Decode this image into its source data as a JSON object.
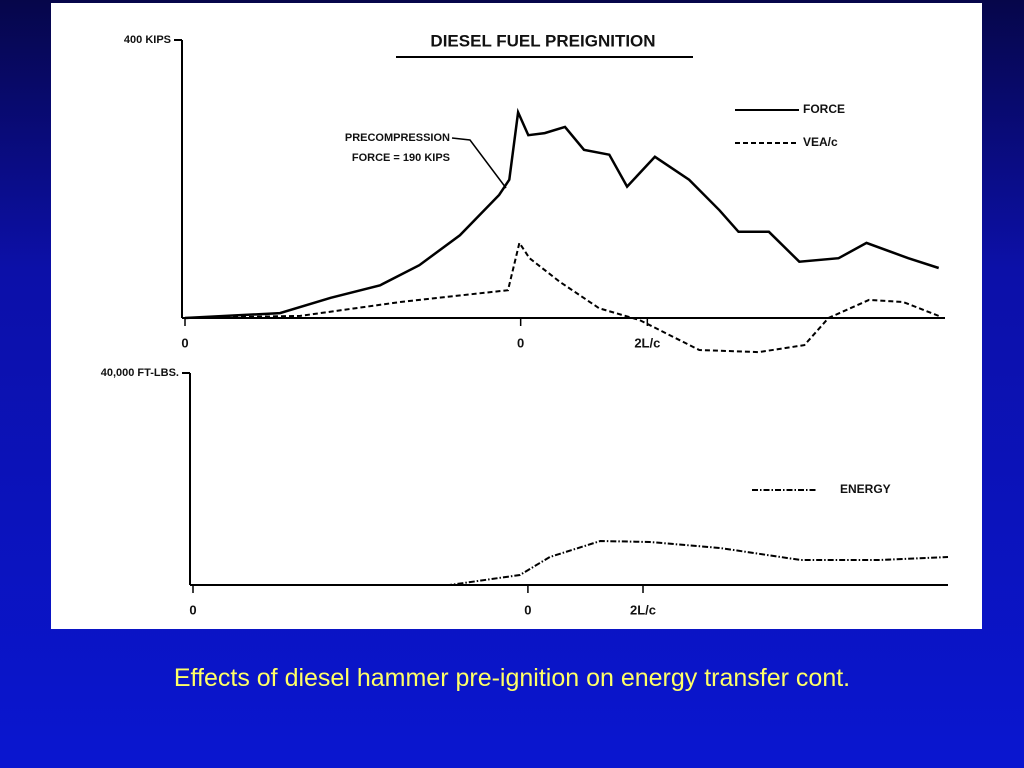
{
  "chart_data": [
    {
      "type": "line",
      "title": "DIESEL FUEL PREIGNITION",
      "annotation": [
        "PRECOMPRESSION",
        "FORCE = 190 KIPS"
      ],
      "xlim": [
        -2.65,
        3.35
      ],
      "xticks": [
        {
          "value": -2.65,
          "label": "0"
        },
        0,
        {
          "value": 1,
          "label": "2L/c"
        }
      ],
      "ylim": [
        -60,
        400
      ],
      "yticks": [
        {
          "value": 400,
          "label": "400 KIPS"
        }
      ],
      "legend": "upper right",
      "series": [
        {
          "name": "FORCE",
          "color": "#000000",
          "style": "solid",
          "x": [
            -2.65,
            -1.9,
            -1.5,
            -1.11,
            -0.8,
            -0.48,
            -0.17,
            -0.09,
            -0.02,
            0.06,
            0.19,
            0.35,
            0.5,
            0.7,
            0.84,
            1.06,
            1.33,
            1.57,
            1.72,
            1.96,
            2.2,
            2.51,
            2.73,
            3.06,
            3.3
          ],
          "values": [
            0,
            7,
            29,
            47,
            76,
            119,
            177,
            199,
            296,
            263,
            266,
            275,
            242,
            235,
            189,
            232,
            199,
            155,
            124,
            124,
            81,
            86,
            108,
            86,
            72
          ]
        },
        {
          "name": "VEA/c",
          "color": "#000000",
          "style": "dashed",
          "x": [
            -2.65,
            -1.74,
            -0.95,
            -0.1,
            -0.01,
            0.07,
            0.31,
            0.62,
            0.94,
            1.41,
            1.88,
            2.24,
            2.43,
            2.75,
            3.02,
            3.3
          ],
          "values": [
            0,
            3,
            23,
            40,
            108,
            86,
            52,
            14,
            -3,
            -46,
            -49,
            -39,
            0,
            26,
            23,
            3
          ]
        }
      ]
    },
    {
      "type": "line",
      "xlim": [
        -2.91,
        3.65
      ],
      "xticks": [
        {
          "value": -2.91,
          "label": "0"
        },
        0,
        {
          "value": 1,
          "label": "2L/c"
        }
      ],
      "ylim": [
        0,
        40000
      ],
      "yticks": [
        {
          "value": 40000,
          "label": "40,000 FT-LBS."
        }
      ],
      "legend": "upper right",
      "series": [
        {
          "name": "ENERGY",
          "color": "#000000",
          "style": "dashdot",
          "x": [
            -2.91,
            -0.68,
            -0.07,
            0.19,
            0.63,
            1.06,
            1.67,
            2.37,
            3.06,
            3.65
          ],
          "values": [
            0,
            0,
            1887,
            5283,
            8302,
            8113,
            6981,
            4717,
            4717,
            5283
          ]
        }
      ]
    }
  ],
  "caption": "Effects of diesel hammer pre-ignition on energy transfer cont."
}
